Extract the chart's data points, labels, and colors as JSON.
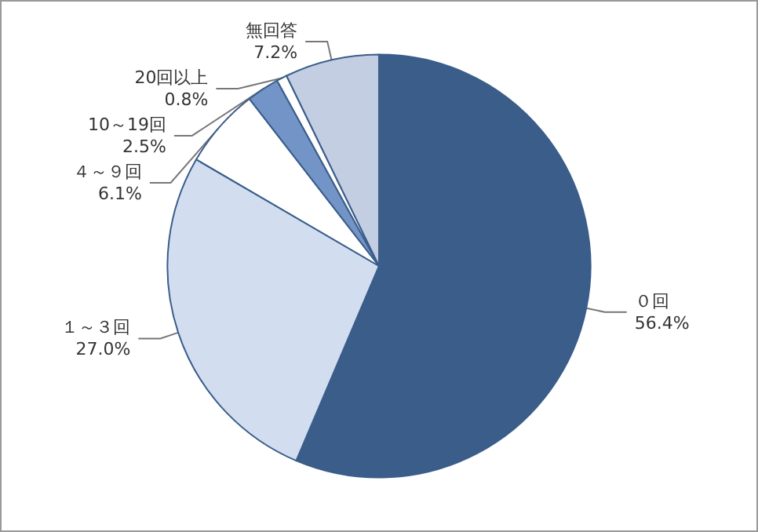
{
  "chart_data": {
    "type": "pie",
    "categories": [
      "０回",
      "１～３回",
      "４～９回",
      "10～19回",
      "20回以上",
      "無回答"
    ],
    "values": [
      56.4,
      27.0,
      6.1,
      2.5,
      0.8,
      7.2
    ],
    "value_labels": [
      "56.4%",
      "27.0%",
      "6.1%",
      "2.5%",
      "0.8%",
      "7.2%"
    ],
    "colors": [
      "#3a5d8a",
      "#d2def0",
      "#ffffff",
      "#7394c6",
      "#ffffff",
      "#c3cee2"
    ]
  }
}
